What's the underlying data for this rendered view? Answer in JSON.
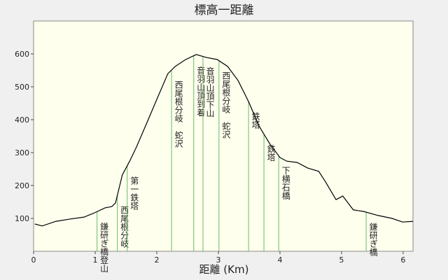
{
  "chart_data": {
    "type": "line",
    "title": "標高一距離",
    "x_label": "距離 (Km)",
    "x": [
      0.02,
      0.14,
      0.36,
      0.59,
      0.82,
      0.99,
      1.16,
      1.27,
      1.33,
      1.44,
      1.56,
      1.67,
      1.84,
      2.01,
      2.18,
      2.3,
      2.47,
      2.64,
      2.81,
      2.98,
      3.15,
      3.32,
      3.49,
      3.66,
      3.83,
      4.0,
      4.11,
      4.28,
      4.45,
      4.63,
      4.74,
      4.91,
      5.02,
      5.19,
      5.36,
      5.59,
      5.82,
      5.99,
      6.16
    ],
    "series": [
      {
        "color": "#000000",
        "values": [
          83,
          77,
          91,
          98,
          104,
          117,
          132,
          136,
          147,
          232,
          274,
          317,
          391,
          466,
          540,
          562,
          583,
          598,
          589,
          583,
          562,
          519,
          455,
          381,
          328,
          285,
          274,
          270,
          253,
          243,
          211,
          157,
          168,
          126,
          121,
          109,
          100,
          89,
          91
        ]
      }
    ],
    "markers": [
      {
        "x": 1.03,
        "label": "鎌研ぎ橋登山"
      },
      {
        "x": 1.36,
        "label": "西尾根分岐"
      },
      {
        "x": 1.52,
        "label": "第一鉄塔"
      },
      {
        "x": 2.24,
        "label": "西尾根分岐　蛇沢"
      },
      {
        "x": 2.6,
        "label": "音羽山頂到着"
      },
      {
        "x": 2.75,
        "label": "音羽山頂下山"
      },
      {
        "x": 3.01,
        "label": "西尾根分岐　蛇沢"
      },
      {
        "x": 3.49,
        "label": "鉄塔"
      },
      {
        "x": 3.74,
        "label": "鉄塔"
      },
      {
        "x": 3.98,
        "label": "下横石橋"
      },
      {
        "x": 5.4,
        "label": "鎌研ぎ橋"
      }
    ],
    "marker_color": "#66bb66",
    "xlim": [
      0,
      6.16
    ],
    "xticks": [
      0,
      1,
      2,
      3,
      4,
      5,
      6
    ],
    "ylim": [
      0,
      700
    ],
    "yticks": [
      100,
      200,
      300,
      400,
      500,
      600
    ]
  }
}
